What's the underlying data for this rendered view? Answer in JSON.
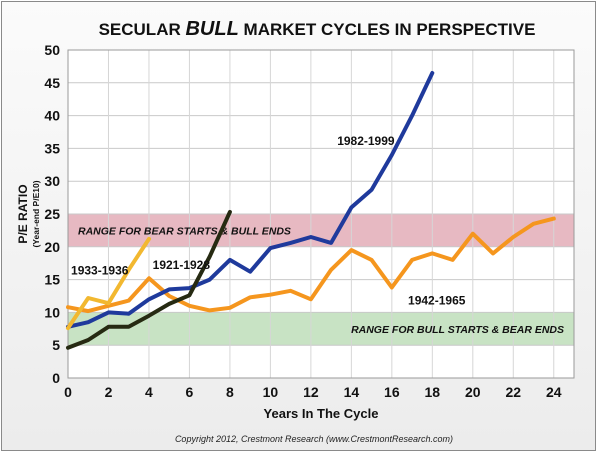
{
  "chart_data": {
    "type": "line",
    "title_parts": [
      "SECULAR ",
      "BULL",
      " MARKET CYCLES IN PERSPECTIVE"
    ],
    "xlabel": "Years In The Cycle",
    "ylabel": "P/E RATIO",
    "ylabel_sub": "(Year-end P/E10)",
    "xlim": [
      0,
      25
    ],
    "ylim": [
      0,
      50
    ],
    "x_ticks": [
      0,
      2,
      4,
      6,
      8,
      10,
      12,
      14,
      16,
      18,
      20,
      22,
      24
    ],
    "y_ticks": [
      0,
      5,
      10,
      15,
      20,
      25,
      30,
      35,
      40,
      45,
      50
    ],
    "grid": true,
    "bands": [
      {
        "label": "RANGE FOR BEAR STARTS & BULL ENDS",
        "y0": 20,
        "y1": 25,
        "color": "#e7b9c2"
      },
      {
        "label": "RANGE FOR BULL STARTS & BEAR ENDS",
        "y0": 5,
        "y1": 10,
        "color": "#c8e3c4"
      }
    ],
    "series": [
      {
        "name": "1982-1999",
        "color": "#1f3a9c",
        "x": [
          0,
          1,
          2,
          3,
          4,
          5,
          6,
          7,
          8,
          9,
          10,
          11,
          12,
          13,
          14,
          15,
          16,
          17,
          18
        ],
        "y": [
          7.8,
          8.5,
          10,
          9.8,
          12,
          13.5,
          13.7,
          15,
          18,
          16.2,
          19.8,
          20.6,
          21.5,
          20.6,
          26,
          28.7,
          34,
          40,
          46.5
        ]
      },
      {
        "name": "1942-1965",
        "color": "#f5961e",
        "x": [
          0,
          1,
          2,
          3,
          4,
          5,
          6,
          7,
          8,
          9,
          10,
          11,
          12,
          13,
          14,
          15,
          16,
          17,
          18,
          19,
          20,
          21,
          22,
          23,
          24
        ],
        "y": [
          10.8,
          10.2,
          11,
          11.8,
          15.2,
          12.5,
          11,
          10.3,
          10.7,
          12.3,
          12.7,
          13.3,
          12,
          16.5,
          19.5,
          18,
          13.8,
          18,
          19,
          18,
          22,
          19,
          21.5,
          23.5,
          24.3
        ]
      },
      {
        "name": "1921-1928",
        "color": "#262a12",
        "x": [
          0,
          1,
          2,
          3,
          4,
          5,
          6,
          7,
          8
        ],
        "y": [
          4.6,
          5.8,
          7.8,
          7.8,
          9.5,
          11.3,
          12.6,
          18.5,
          25.3
        ]
      },
      {
        "name": "1933-1936",
        "color": "#f2b830",
        "x": [
          0,
          1,
          2,
          3,
          4
        ],
        "y": [
          7.6,
          12.2,
          11.4,
          16.5,
          21.2
        ]
      }
    ]
  },
  "footer": {
    "copyright": "Copyright 2012, Crestmont Research (www.CrestmontResearch.com)"
  }
}
